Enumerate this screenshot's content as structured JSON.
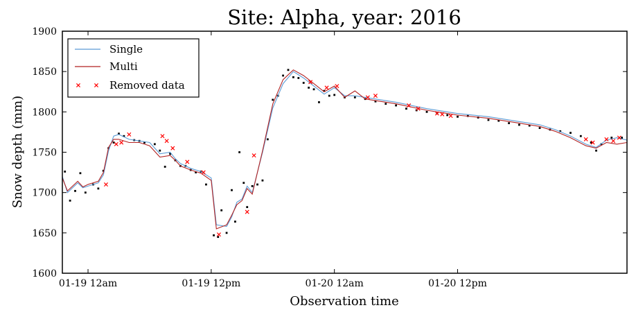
{
  "chart_data": {
    "type": "line",
    "title": "Site: Alpha, year: 2016",
    "xlabel": "Observation time",
    "ylabel": "Snow depth (mm)",
    "xlim": [
      "2016-01-18T21:30",
      "2016-01-21T04:30"
    ],
    "ylim": [
      1600,
      1900
    ],
    "yticks": [
      1600,
      1650,
      1700,
      1750,
      1800,
      1850,
      1900
    ],
    "xticks": [
      {
        "t": "2016-01-19T00:00",
        "label": "01-19 12am"
      },
      {
        "t": "2016-01-19T12:00",
        "label": "01-19 12pm"
      },
      {
        "t": "2016-01-20T00:00",
        "label": "01-20 12am"
      },
      {
        "t": "2016-01-20T12:00",
        "label": "01-20 12pm"
      }
    ],
    "legend": {
      "placement": "top-left",
      "entries": [
        "Single",
        "Multi",
        "Removed data"
      ]
    },
    "colors": {
      "single": "#5b9bd5",
      "multi": "#b22222",
      "removed": "#ff0000",
      "observed": "#000000"
    },
    "series": [
      {
        "name": "Single",
        "x": [
          "2016-01-18T21:30",
          "2016-01-18T22:00",
          "2016-01-18T23:00",
          "2016-01-18T23:30",
          "2016-01-19T00:00",
          "2016-01-19T01:00",
          "2016-01-19T01:30",
          "2016-01-19T02:00",
          "2016-01-19T02:30",
          "2016-01-19T03:00",
          "2016-01-19T04:00",
          "2016-01-19T05:00",
          "2016-01-19T06:00",
          "2016-01-19T07:00",
          "2016-01-19T08:00",
          "2016-01-19T08:30",
          "2016-01-19T09:00",
          "2016-01-19T10:00",
          "2016-01-19T11:00",
          "2016-01-19T12:00",
          "2016-01-19T12:30",
          "2016-01-19T13:30",
          "2016-01-19T14:00",
          "2016-01-19T14:30",
          "2016-01-19T15:00",
          "2016-01-19T15:30",
          "2016-01-19T16:00",
          "2016-01-19T17:00",
          "2016-01-19T18:00",
          "2016-01-19T19:00",
          "2016-01-19T20:00",
          "2016-01-19T21:00",
          "2016-01-19T22:00",
          "2016-01-19T23:00",
          "2016-01-20T00:00",
          "2016-01-20T01:00",
          "2016-01-20T02:00",
          "2016-01-20T03:00",
          "2016-01-20T06:00",
          "2016-01-20T09:00",
          "2016-01-20T12:00",
          "2016-01-20T15:00",
          "2016-01-20T18:00",
          "2016-01-20T20:00",
          "2016-01-20T21:30",
          "2016-01-20T23:00",
          "2016-01-21T00:30",
          "2016-01-21T01:30",
          "2016-01-21T02:30",
          "2016-01-21T03:30",
          "2016-01-21T04:30"
        ],
        "y": [
          1720,
          1700,
          1712,
          1706,
          1708,
          1712,
          1722,
          1752,
          1770,
          1772,
          1766,
          1764,
          1762,
          1748,
          1750,
          1742,
          1736,
          1730,
          1726,
          1718,
          1660,
          1658,
          1670,
          1688,
          1692,
          1708,
          1700,
          1750,
          1805,
          1835,
          1850,
          1842,
          1832,
          1822,
          1830,
          1820,
          1820,
          1818,
          1812,
          1804,
          1798,
          1794,
          1788,
          1784,
          1778,
          1770,
          1760,
          1756,
          1765,
          1768,
          1765
        ]
      },
      {
        "name": "Multi",
        "x": [
          "2016-01-18T21:30",
          "2016-01-18T22:00",
          "2016-01-18T23:00",
          "2016-01-18T23:30",
          "2016-01-19T00:00",
          "2016-01-19T01:00",
          "2016-01-19T01:30",
          "2016-01-19T02:00",
          "2016-01-19T02:30",
          "2016-01-19T03:00",
          "2016-01-19T04:00",
          "2016-01-19T05:00",
          "2016-01-19T06:00",
          "2016-01-19T07:00",
          "2016-01-19T08:00",
          "2016-01-19T08:30",
          "2016-01-19T09:00",
          "2016-01-19T10:00",
          "2016-01-19T11:00",
          "2016-01-19T12:00",
          "2016-01-19T12:30",
          "2016-01-19T13:30",
          "2016-01-19T14:00",
          "2016-01-19T14:30",
          "2016-01-19T15:00",
          "2016-01-19T15:30",
          "2016-01-19T16:00",
          "2016-01-19T17:00",
          "2016-01-19T18:00",
          "2016-01-19T19:00",
          "2016-01-19T20:00",
          "2016-01-19T21:00",
          "2016-01-19T22:00",
          "2016-01-19T23:00",
          "2016-01-20T00:00",
          "2016-01-20T01:00",
          "2016-01-20T02:00",
          "2016-01-20T03:00",
          "2016-01-20T06:00",
          "2016-01-20T09:00",
          "2016-01-20T12:00",
          "2016-01-20T15:00",
          "2016-01-20T18:00",
          "2016-01-20T20:00",
          "2016-01-20T21:30",
          "2016-01-20T23:00",
          "2016-01-21T00:30",
          "2016-01-21T01:30",
          "2016-01-21T02:30",
          "2016-01-21T03:30",
          "2016-01-21T04:30"
        ],
        "y": [
          1718,
          1702,
          1714,
          1707,
          1710,
          1714,
          1725,
          1756,
          1766,
          1766,
          1762,
          1762,
          1758,
          1744,
          1746,
          1740,
          1733,
          1728,
          1724,
          1715,
          1655,
          1660,
          1672,
          1685,
          1690,
          1705,
          1698,
          1752,
          1810,
          1840,
          1852,
          1845,
          1835,
          1825,
          1832,
          1818,
          1826,
          1816,
          1810,
          1802,
          1796,
          1792,
          1786,
          1782,
          1776,
          1768,
          1758,
          1755,
          1762,
          1760,
          1762
        ]
      }
    ],
    "observed": {
      "x": [
        "2016-01-18T21:45",
        "2016-01-18T22:15",
        "2016-01-18T22:45",
        "2016-01-18T23:15",
        "2016-01-18T23:45",
        "2016-01-19T00:30",
        "2016-01-19T01:00",
        "2016-01-19T01:30",
        "2016-01-19T02:00",
        "2016-01-19T02:30",
        "2016-01-19T03:00",
        "2016-01-19T03:30",
        "2016-01-19T04:30",
        "2016-01-19T05:00",
        "2016-01-19T05:30",
        "2016-01-19T06:30",
        "2016-01-19T07:00",
        "2016-01-19T07:30",
        "2016-01-19T08:00",
        "2016-01-19T08:30",
        "2016-01-19T09:00",
        "2016-01-19T09:30",
        "2016-01-19T10:00",
        "2016-01-19T10:30",
        "2016-01-19T11:00",
        "2016-01-19T11:30",
        "2016-01-19T12:15",
        "2016-01-19T12:40",
        "2016-01-19T13:00",
        "2016-01-19T13:30",
        "2016-01-19T14:00",
        "2016-01-19T14:20",
        "2016-01-19T14:45",
        "2016-01-19T15:10",
        "2016-01-19T15:30",
        "2016-01-19T16:00",
        "2016-01-19T16:30",
        "2016-01-19T17:00",
        "2016-01-19T17:30",
        "2016-01-19T18:00",
        "2016-01-19T18:30",
        "2016-01-19T19:00",
        "2016-01-19T19:30",
        "2016-01-19T20:00",
        "2016-01-19T20:30",
        "2016-01-19T21:00",
        "2016-01-19T21:30",
        "2016-01-19T22:00",
        "2016-01-19T22:30",
        "2016-01-19T23:00",
        "2016-01-19T23:30",
        "2016-01-20T00:00",
        "2016-01-20T01:00",
        "2016-01-20T02:00",
        "2016-01-20T03:00",
        "2016-01-20T04:00",
        "2016-01-20T05:00",
        "2016-01-20T06:00",
        "2016-01-20T07:00",
        "2016-01-20T08:00",
        "2016-01-20T09:00",
        "2016-01-20T10:00",
        "2016-01-20T11:00",
        "2016-01-20T12:00",
        "2016-01-20T13:00",
        "2016-01-20T14:00",
        "2016-01-20T15:00",
        "2016-01-20T16:00",
        "2016-01-20T17:00",
        "2016-01-20T18:00",
        "2016-01-20T19:00",
        "2016-01-20T20:00",
        "2016-01-20T21:00",
        "2016-01-20T22:00",
        "2016-01-20T23:00",
        "2016-01-21T00:00",
        "2016-01-21T01:00",
        "2016-01-21T01:30",
        "2016-01-21T02:00",
        "2016-01-21T03:00",
        "2016-01-21T04:00"
      ],
      "y": [
        1726,
        1690,
        1702,
        1724,
        1700,
        1710,
        1705,
        1727,
        1755,
        1762,
        1773,
        1770,
        1765,
        1764,
        1762,
        1760,
        1752,
        1732,
        1748,
        1740,
        1733,
        1733,
        1728,
        1725,
        1726,
        1710,
        1647,
        1645,
        1678,
        1650,
        1703,
        1664,
        1750,
        1712,
        1682,
        1708,
        1710,
        1715,
        1766,
        1815,
        1820,
        1845,
        1852,
        1843,
        1842,
        1836,
        1830,
        1828,
        1812,
        1826,
        1820,
        1821,
        1818,
        1818,
        1816,
        1813,
        1810,
        1808,
        1804,
        1802,
        1800,
        1798,
        1796,
        1794,
        1795,
        1793,
        1790,
        1789,
        1786,
        1784,
        1783,
        1780,
        1778,
        1776,
        1774,
        1770,
        1762,
        1752,
        1760,
        1768,
        1768
      ]
    },
    "removed": {
      "x": [
        "2016-01-19T01:45",
        "2016-01-19T02:45",
        "2016-01-19T03:15",
        "2016-01-19T04:00",
        "2016-01-19T07:15",
        "2016-01-19T07:40",
        "2016-01-19T08:15",
        "2016-01-19T09:40",
        "2016-01-19T11:15",
        "2016-01-19T12:45",
        "2016-01-19T15:30",
        "2016-01-19T16:10",
        "2016-01-19T21:40",
        "2016-01-19T23:15",
        "2016-01-20T00:15",
        "2016-01-20T03:15",
        "2016-01-20T04:00",
        "2016-01-20T07:15",
        "2016-01-20T08:10",
        "2016-01-20T10:00",
        "2016-01-20T10:30",
        "2016-01-20T11:20",
        "2016-01-21T00:30",
        "2016-01-21T01:10",
        "2016-01-21T02:30",
        "2016-01-21T03:10",
        "2016-01-21T03:45"
      ],
      "y": [
        1710,
        1760,
        1762,
        1772,
        1770,
        1764,
        1755,
        1738,
        1725,
        1648,
        1676,
        1746,
        1837,
        1830,
        1832,
        1818,
        1820,
        1808,
        1804,
        1798,
        1797,
        1795,
        1766,
        1762,
        1766,
        1764,
        1768
      ]
    }
  }
}
